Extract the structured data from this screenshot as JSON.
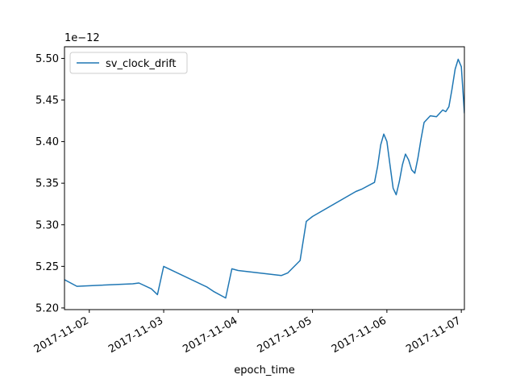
{
  "chart_data": {
    "type": "line",
    "title": "",
    "xlabel": "epoch_time",
    "ylabel": "",
    "y_offset_text": "1e−12",
    "y_scale_exponent": -12,
    "grid": false,
    "legend_position": "top-left",
    "colors": {
      "series": "#1f77b4",
      "axes": "#000000"
    },
    "xlim": [
      "2017-11-01 16:00",
      "2017-11-07 01:00"
    ],
    "ylim": [
      5.198,
      5.514
    ],
    "x_ticks": [
      {
        "value": "2017-11-02 00:00",
        "label": "2017-11-02"
      },
      {
        "value": "2017-11-03 00:00",
        "label": "2017-11-03"
      },
      {
        "value": "2017-11-04 00:00",
        "label": "2017-11-04"
      },
      {
        "value": "2017-11-05 00:00",
        "label": "2017-11-05"
      },
      {
        "value": "2017-11-06 00:00",
        "label": "2017-11-06"
      },
      {
        "value": "2017-11-07 00:00",
        "label": "2017-11-07"
      }
    ],
    "y_ticks": [
      {
        "value": 5.2,
        "label": "5.20"
      },
      {
        "value": 5.25,
        "label": "5.25"
      },
      {
        "value": 5.3,
        "label": "5.30"
      },
      {
        "value": 5.35,
        "label": "5.35"
      },
      {
        "value": 5.4,
        "label": "5.40"
      },
      {
        "value": 5.45,
        "label": "5.45"
      },
      {
        "value": 5.5,
        "label": "5.50"
      }
    ],
    "series": [
      {
        "name": "sv_clock_drift",
        "color": "#1f77b4",
        "x": [
          "2017-11-01 16:00",
          "2017-11-01 20:00",
          "2017-11-02 14:00",
          "2017-11-02 16:00",
          "2017-11-02 20:00",
          "2017-11-02 22:00",
          "2017-11-03 00:00",
          "2017-11-03 14:00",
          "2017-11-03 16:00",
          "2017-11-03 20:00",
          "2017-11-03 22:00",
          "2017-11-04 00:00",
          "2017-11-04 14:00",
          "2017-11-04 16:00",
          "2017-11-04 20:00",
          "2017-11-04 22:00",
          "2017-11-05 00:00",
          "2017-11-05 14:00",
          "2017-11-05 16:00",
          "2017-11-05 20:00",
          "2017-11-05 21:00",
          "2017-11-05 22:00",
          "2017-11-05 23:00",
          "2017-11-06 00:00",
          "2017-11-06 01:00",
          "2017-11-06 02:00",
          "2017-11-06 03:00",
          "2017-11-06 04:00",
          "2017-11-06 05:00",
          "2017-11-06 06:00",
          "2017-11-06 07:00",
          "2017-11-06 08:00",
          "2017-11-06 09:00",
          "2017-11-06 10:00",
          "2017-11-06 11:00",
          "2017-11-06 12:00",
          "2017-11-06 14:00",
          "2017-11-06 16:00",
          "2017-11-06 18:00",
          "2017-11-06 19:00",
          "2017-11-06 20:00",
          "2017-11-06 21:00",
          "2017-11-06 22:00",
          "2017-11-06 23:00",
          "2017-11-07 00:00",
          "2017-11-07 01:00"
        ],
        "values": [
          5.234,
          5.226,
          5.229,
          5.23,
          5.223,
          5.216,
          5.25,
          5.225,
          5.22,
          5.212,
          5.247,
          5.245,
          5.239,
          5.242,
          5.257,
          5.304,
          5.31,
          5.34,
          5.343,
          5.351,
          5.37,
          5.396,
          5.409,
          5.4,
          5.372,
          5.344,
          5.336,
          5.352,
          5.372,
          5.385,
          5.378,
          5.366,
          5.362,
          5.38,
          5.403,
          5.423,
          5.431,
          5.43,
          5.438,
          5.436,
          5.442,
          5.463,
          5.487,
          5.499,
          5.49,
          5.434
        ]
      }
    ]
  }
}
